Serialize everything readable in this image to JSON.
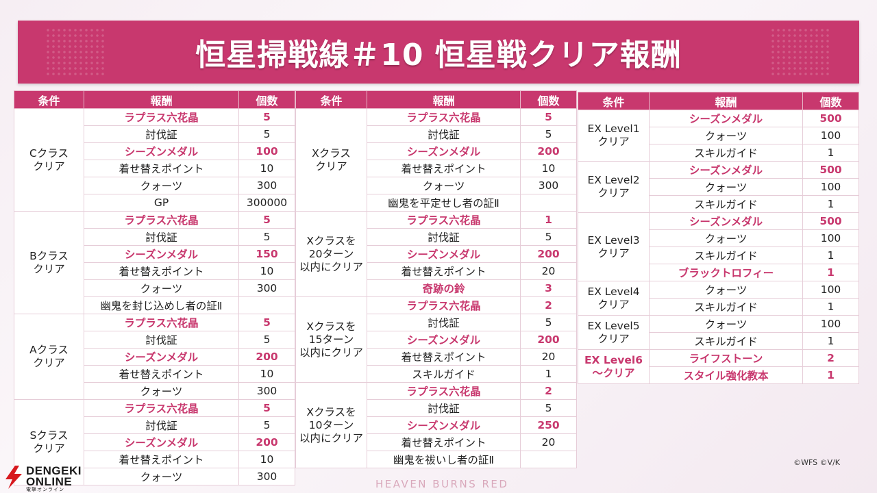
{
  "title": "恒星掃戦線＃10 恒星戦クリア報酬",
  "headers": [
    "条件",
    "報酬",
    "個数"
  ],
  "accent_color": "#c8386e",
  "tables": [
    {
      "groups": [
        {
          "cond": [
            "Cクラス",
            "クリア"
          ],
          "hl": false,
          "rows": [
            {
              "name": "ラプラス六花晶",
              "qty": "5",
              "hl": true
            },
            {
              "name": "討伐証",
              "qty": "5",
              "hl": false
            },
            {
              "name": "シーズンメダル",
              "qty": "100",
              "hl": true
            },
            {
              "name": "着せ替えポイント",
              "qty": "10",
              "hl": false
            },
            {
              "name": "クォーツ",
              "qty": "300",
              "hl": false
            },
            {
              "name": "GP",
              "qty": "300000",
              "hl": false
            }
          ]
        },
        {
          "cond": [
            "Bクラス",
            "クリア"
          ],
          "hl": false,
          "rows": [
            {
              "name": "ラプラス六花晶",
              "qty": "5",
              "hl": true
            },
            {
              "name": "討伐証",
              "qty": "5",
              "hl": false
            },
            {
              "name": "シーズンメダル",
              "qty": "150",
              "hl": true
            },
            {
              "name": "着せ替えポイント",
              "qty": "10",
              "hl": false
            },
            {
              "name": "クォーツ",
              "qty": "300",
              "hl": false
            },
            {
              "name": "幽鬼を封じ込めし者の証Ⅱ",
              "qty": "",
              "hl": false
            }
          ]
        },
        {
          "cond": [
            "Aクラス",
            "クリア"
          ],
          "hl": false,
          "rows": [
            {
              "name": "ラプラス六花晶",
              "qty": "5",
              "hl": true
            },
            {
              "name": "討伐証",
              "qty": "5",
              "hl": false
            },
            {
              "name": "シーズンメダル",
              "qty": "200",
              "hl": true
            },
            {
              "name": "着せ替えポイント",
              "qty": "10",
              "hl": false
            },
            {
              "name": "クォーツ",
              "qty": "300",
              "hl": false
            }
          ]
        },
        {
          "cond": [
            "Sクラス",
            "クリア"
          ],
          "hl": false,
          "rows": [
            {
              "name": "ラプラス六花晶",
              "qty": "5",
              "hl": true
            },
            {
              "name": "討伐証",
              "qty": "5",
              "hl": false
            },
            {
              "name": "シーズンメダル",
              "qty": "200",
              "hl": true
            },
            {
              "name": "着せ替えポイント",
              "qty": "10",
              "hl": false
            },
            {
              "name": "クォーツ",
              "qty": "300",
              "hl": false
            }
          ]
        }
      ]
    },
    {
      "groups": [
        {
          "cond": [
            "Xクラス",
            "クリア"
          ],
          "hl": false,
          "rows": [
            {
              "name": "ラプラス六花晶",
              "qty": "5",
              "hl": true
            },
            {
              "name": "討伐証",
              "qty": "5",
              "hl": false
            },
            {
              "name": "シーズンメダル",
              "qty": "200",
              "hl": true
            },
            {
              "name": "着せ替えポイント",
              "qty": "10",
              "hl": false
            },
            {
              "name": "クォーツ",
              "qty": "300",
              "hl": false
            },
            {
              "name": "幽鬼を平定せし者の証Ⅱ",
              "qty": "",
              "hl": false
            }
          ]
        },
        {
          "cond": [
            "Xクラスを",
            "20ターン",
            "以内にクリア"
          ],
          "hl": false,
          "rows": [
            {
              "name": "ラプラス六花晶",
              "qty": "1",
              "hl": true
            },
            {
              "name": "討伐証",
              "qty": "5",
              "hl": false
            },
            {
              "name": "シーズンメダル",
              "qty": "200",
              "hl": true
            },
            {
              "name": "着せ替えポイント",
              "qty": "20",
              "hl": false
            },
            {
              "name": "奇跡の鈴",
              "qty": "3",
              "hl": true
            }
          ]
        },
        {
          "cond": [
            "Xクラスを",
            "15ターン",
            "以内にクリア"
          ],
          "hl": false,
          "rows": [
            {
              "name": "ラプラス六花晶",
              "qty": "2",
              "hl": true
            },
            {
              "name": "討伐証",
              "qty": "5",
              "hl": false
            },
            {
              "name": "シーズンメダル",
              "qty": "200",
              "hl": true
            },
            {
              "name": "着せ替えポイント",
              "qty": "20",
              "hl": false
            },
            {
              "name": "スキルガイド",
              "qty": "1",
              "hl": false
            }
          ]
        },
        {
          "cond": [
            "Xクラスを",
            "10ターン",
            "以内にクリア"
          ],
          "hl": false,
          "rows": [
            {
              "name": "ラプラス六花晶",
              "qty": "2",
              "hl": true
            },
            {
              "name": "討伐証",
              "qty": "5",
              "hl": false
            },
            {
              "name": "シーズンメダル",
              "qty": "250",
              "hl": true
            },
            {
              "name": "着せ替えポイント",
              "qty": "20",
              "hl": false
            },
            {
              "name": "幽鬼を祓いし者の証Ⅱ",
              "qty": "",
              "hl": false
            }
          ]
        }
      ]
    },
    {
      "groups": [
        {
          "cond": [
            "EX Level1",
            "クリア"
          ],
          "hl": false,
          "rows": [
            {
              "name": "シーズンメダル",
              "qty": "500",
              "hl": true
            },
            {
              "name": "クォーツ",
              "qty": "100",
              "hl": false
            },
            {
              "name": "スキルガイド",
              "qty": "1",
              "hl": false
            }
          ]
        },
        {
          "cond": [
            "EX Level2",
            "クリア"
          ],
          "hl": false,
          "rows": [
            {
              "name": "シーズンメダル",
              "qty": "500",
              "hl": true
            },
            {
              "name": "クォーツ",
              "qty": "100",
              "hl": false
            },
            {
              "name": "スキルガイド",
              "qty": "1",
              "hl": false
            }
          ]
        },
        {
          "cond": [
            "EX Level3",
            "クリア"
          ],
          "hl": false,
          "rows": [
            {
              "name": "シーズンメダル",
              "qty": "500",
              "hl": true
            },
            {
              "name": "クォーツ",
              "qty": "100",
              "hl": false
            },
            {
              "name": "スキルガイド",
              "qty": "1",
              "hl": false
            },
            {
              "name": "ブラックトロフィー",
              "qty": "1",
              "hl": true
            }
          ]
        },
        {
          "cond": [
            "EX Level4",
            "クリア"
          ],
          "hl": false,
          "rows": [
            {
              "name": "クォーツ",
              "qty": "100",
              "hl": false
            },
            {
              "name": "スキルガイド",
              "qty": "1",
              "hl": false
            }
          ]
        },
        {
          "cond": [
            "EX Level5",
            "クリア"
          ],
          "hl": false,
          "rows": [
            {
              "name": "クォーツ",
              "qty": "100",
              "hl": false
            },
            {
              "name": "スキルガイド",
              "qty": "1",
              "hl": false
            }
          ]
        },
        {
          "cond": [
            "EX Level6",
            "～クリア"
          ],
          "hl": true,
          "rows": [
            {
              "name": "ライフストーン",
              "qty": "2",
              "hl": true
            },
            {
              "name": "スタイル強化教本",
              "qty": "1",
              "hl": true
            }
          ]
        }
      ]
    }
  ],
  "watermark": "HEAVEN BURNS RED",
  "copyright": "©WFS ©V/K",
  "logo": {
    "line1": "DENGEKI",
    "line2": "ONLINE",
    "line3": "電撃オンライン"
  }
}
